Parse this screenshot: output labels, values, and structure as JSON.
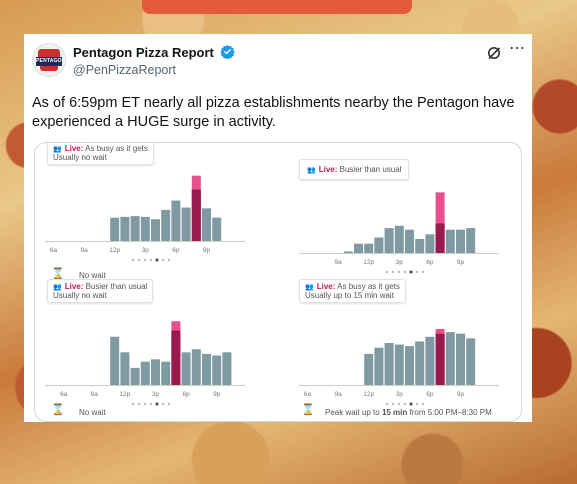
{
  "tweet": {
    "display_name": "Pentagon Pizza Report",
    "handle": "@PenPizzaReport",
    "avatar_text": "PENTAGON",
    "text": "As of 6:59pm ET nearly all pizza establishments nearby the Pentagon have experienced a HUGE surge in activity.",
    "colors": {
      "accent": "#1d9bf0",
      "live": "#c2185b",
      "bar": "#7f9aa3",
      "live_bar": "#e84f8c",
      "live_bar_dark": "#9b1a4d"
    }
  },
  "chart_data": [
    {
      "type": "bar",
      "title": "",
      "tip_line1_live": "Live:",
      "tip_line1_rest": "As busy as it gets",
      "tip_line2": "Usually no wait",
      "tick_labels": [
        "6a",
        "9a",
        "12p",
        "3p",
        "6p",
        "9p"
      ],
      "values": [
        0,
        0,
        0,
        0,
        0,
        0,
        30,
        31,
        32,
        31,
        28,
        40,
        52,
        43,
        66,
        42,
        30
      ],
      "live_index": 14,
      "live_value": 84,
      "footer": "No wait"
    },
    {
      "type": "bar",
      "title": "",
      "tip_line1_live": "Live:",
      "tip_line1_rest": "Busier than usual",
      "tip_line2": "",
      "tick_labels": [
        "9a",
        "12p",
        "3p",
        "6p",
        "9p"
      ],
      "values": [
        0,
        0,
        0,
        0,
        2,
        12,
        12,
        20,
        32,
        35,
        30,
        18,
        24,
        38,
        30,
        30,
        32
      ],
      "live_index": 13,
      "live_value": 78,
      "footer": ""
    },
    {
      "type": "bar",
      "title": "",
      "tip_line1_live": "Live:",
      "tip_line1_rest": "Busier than usual",
      "tip_line2": "Usually no wait",
      "tick_labels": [
        "6a",
        "9a",
        "12p",
        "3p",
        "6p",
        "9p"
      ],
      "values": [
        0,
        0,
        0,
        0,
        0,
        0,
        62,
        42,
        22,
        30,
        33,
        30,
        70,
        42,
        46,
        40,
        38,
        42
      ],
      "live_index": 12,
      "live_value": 82,
      "footer": "No wait"
    },
    {
      "type": "bar",
      "title": "",
      "tip_line1_live": "Live:",
      "tip_line1_rest": "As busy as it gets",
      "tip_line2": "Usually up to 15 min wait",
      "tick_labels": [
        "6a",
        "9a",
        "12p",
        "3p",
        "6p",
        "9p"
      ],
      "values": [
        0,
        0,
        0,
        0,
        0,
        0,
        40,
        48,
        54,
        52,
        50,
        56,
        62,
        66,
        68,
        66,
        60
      ],
      "live_index": 13,
      "live_value": 72,
      "footer_prefix": "Peak wait up to",
      "footer_bold": "15 min",
      "footer_suffix": "from 5:00 PM–8:30 PM"
    }
  ]
}
